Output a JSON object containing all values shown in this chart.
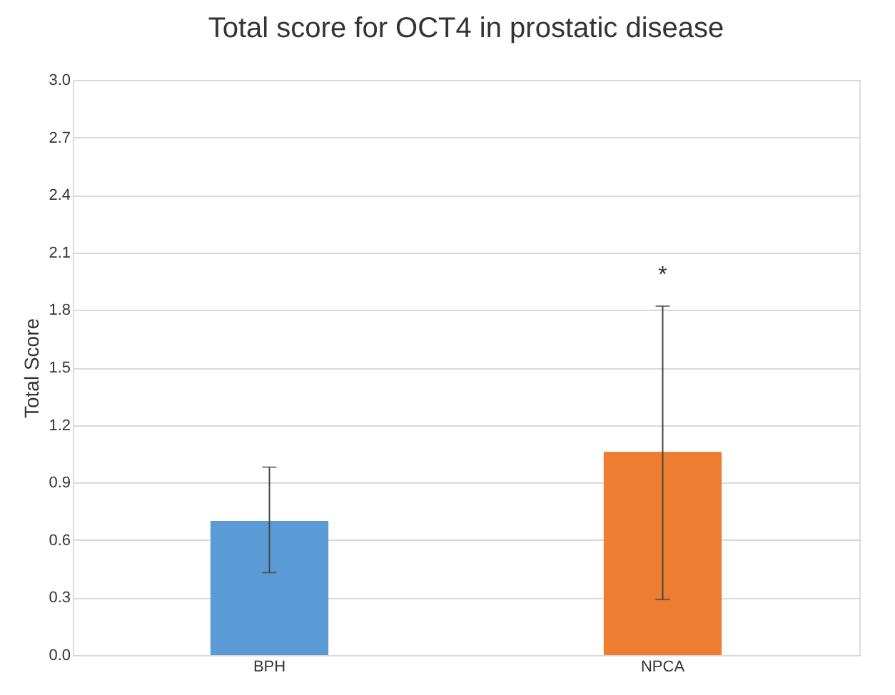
{
  "chart_data": {
    "type": "bar",
    "title": "Total score for OCT4 in prostatic disease",
    "ylabel": "Total Score",
    "categories": [
      "BPH",
      "NPCA"
    ],
    "values": [
      0.7,
      1.06
    ],
    "colors": [
      "#5b9bd5",
      "#ed7d31"
    ],
    "errors": [
      [
        0.43,
        0.98
      ],
      [
        0.29,
        1.82
      ]
    ],
    "annotations": [
      "*"
    ],
    "ylim": [
      0,
      3
    ],
    "yticks": [
      {
        "value": 0,
        "label": "0.0"
      },
      {
        "value": 0.3,
        "label": "0.3"
      },
      {
        "value": 0.6,
        "label": "0.6"
      },
      {
        "value": 0.9,
        "label": "0.9"
      },
      {
        "value": 1.2,
        "label": "1.2"
      },
      {
        "value": 1.5,
        "label": "1.5"
      },
      {
        "value": 1.8,
        "label": "1.8"
      },
      {
        "value": 2.1,
        "label": "2.1"
      },
      {
        "value": 2.4,
        "label": "2.4"
      },
      {
        "value": 2.7,
        "label": "2.7"
      },
      {
        "value": 3.0,
        "label": "3.0"
      }
    ],
    "grid": "y"
  }
}
